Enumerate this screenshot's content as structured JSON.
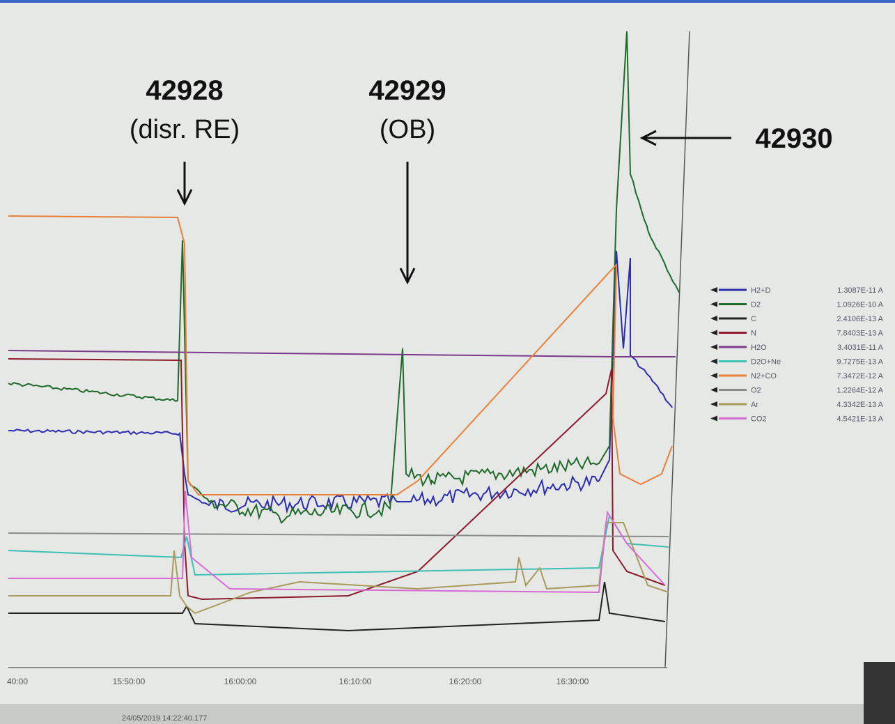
{
  "annotations": [
    {
      "id": "42928",
      "note": "(disr. RE)"
    },
    {
      "id": "42929",
      "note": "(OB)"
    },
    {
      "id": "42930"
    }
  ],
  "x_axis": {
    "ticks": [
      "40:00",
      "15:50:00",
      "16:00:00",
      "16:10:00",
      "16:20:00",
      "16:30:00"
    ]
  },
  "legend": {
    "entries": [
      {
        "name": "H2+D",
        "reading": "1.3087E-11 A",
        "color": "#2c2cb0"
      },
      {
        "name": "D2",
        "reading": "1.0926E-10 A",
        "color": "#1f6a2a"
      },
      {
        "name": "C",
        "reading": "2.4106E-13 A",
        "color": "#222222"
      },
      {
        "name": "N",
        "reading": "7.8403E-13 A",
        "color": "#8b1a2a"
      },
      {
        "name": "H2O",
        "reading": "3.4031E-11 A",
        "color": "#7a3a8a"
      },
      {
        "name": "D2O+Ne",
        "reading": "9.7275E-13 A",
        "color": "#3cc0b8"
      },
      {
        "name": "N2+CO",
        "reading": "7.3472E-12 A",
        "color": "#e8803a"
      },
      {
        "name": "O2",
        "reading": "1.2264E-12 A",
        "color": "#8a8a8a"
      },
      {
        "name": "Ar",
        "reading": "4.3342E-13 A",
        "color": "#a89a5a"
      },
      {
        "name": "CO2",
        "reading": "4.5421E-13 A",
        "color": "#d86ad8"
      }
    ]
  },
  "timestamp": "24/05/2019 14:22:40.177"
}
